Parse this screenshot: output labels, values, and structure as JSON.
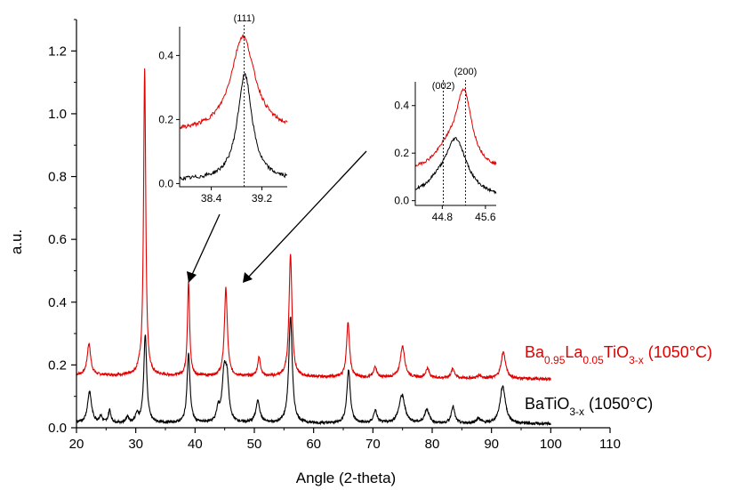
{
  "colors": {
    "red": "#e00000",
    "black": "#000000"
  },
  "chart_data": {
    "type": "line",
    "xlabel": "Angle (2-theta)",
    "ylabel": "a.u.",
    "xlim": [
      20,
      110
    ],
    "ylim": [
      0,
      1.3
    ],
    "x_ticks": [
      "20",
      "30",
      "40",
      "50",
      "60",
      "70",
      "80",
      "90",
      "100",
      "110"
    ],
    "y_ticks": [
      "0.0",
      "0.2",
      "0.4",
      "0.6",
      "0.8",
      "1.0",
      "1.2"
    ],
    "x_range": [
      20,
      100
    ],
    "series": [
      {
        "name_parts": [
          "Ba",
          "0.95",
          "La",
          "0.05",
          "TiO",
          "3-x",
          " (1050°C)"
        ],
        "color": "#e00000",
        "baseline": 0.168,
        "baseline_end": 0.155,
        "peaks": [
          {
            "x": 22.1,
            "h": 0.1,
            "w": 0.35
          },
          {
            "x": 30.5,
            "h": 0.015,
            "w": 0.3
          },
          {
            "x": 31.5,
            "h": 0.98,
            "w": 0.22
          },
          {
            "x": 38.9,
            "h": 0.3,
            "w": 0.22
          },
          {
            "x": 45.2,
            "h": 0.28,
            "w": 0.3
          },
          {
            "x": 50.8,
            "h": 0.06,
            "w": 0.3
          },
          {
            "x": 56.1,
            "h": 0.39,
            "w": 0.3
          },
          {
            "x": 65.8,
            "h": 0.175,
            "w": 0.3
          },
          {
            "x": 70.4,
            "h": 0.035,
            "w": 0.3
          },
          {
            "x": 75.0,
            "h": 0.1,
            "w": 0.45
          },
          {
            "x": 79.2,
            "h": 0.03,
            "w": 0.35
          },
          {
            "x": 83.5,
            "h": 0.03,
            "w": 0.35
          },
          {
            "x": 88.0,
            "h": 0.01,
            "w": 0.4
          },
          {
            "x": 92.0,
            "h": 0.085,
            "w": 0.45
          }
        ]
      },
      {
        "name_parts": [
          "BaTiO",
          "3-x",
          " (1050°C)"
        ],
        "color": "#000000",
        "baseline": 0.015,
        "baseline_end": 0.012,
        "peaks": [
          {
            "x": 22.2,
            "h": 0.1,
            "w": 0.4
          },
          {
            "x": 24.1,
            "h": 0.02,
            "w": 0.3
          },
          {
            "x": 25.6,
            "h": 0.04,
            "w": 0.25
          },
          {
            "x": 28.6,
            "h": 0.02,
            "w": 0.25
          },
          {
            "x": 30.2,
            "h": 0.025,
            "w": 0.3
          },
          {
            "x": 31.6,
            "h": 0.28,
            "w": 0.3
          },
          {
            "x": 38.9,
            "h": 0.22,
            "w": 0.3
          },
          {
            "x": 43.9,
            "h": 0.04,
            "w": 0.3
          },
          {
            "x": 44.9,
            "h": 0.15,
            "w": 0.4
          },
          {
            "x": 45.4,
            "h": 0.12,
            "w": 0.35
          },
          {
            "x": 50.6,
            "h": 0.07,
            "w": 0.4
          },
          {
            "x": 56.1,
            "h": 0.34,
            "w": 0.35
          },
          {
            "x": 65.9,
            "h": 0.17,
            "w": 0.35
          },
          {
            "x": 70.4,
            "h": 0.04,
            "w": 0.35
          },
          {
            "x": 74.9,
            "h": 0.09,
            "w": 0.6
          },
          {
            "x": 79.1,
            "h": 0.045,
            "w": 0.45
          },
          {
            "x": 83.5,
            "h": 0.055,
            "w": 0.35
          },
          {
            "x": 87.8,
            "h": 0.015,
            "w": 0.5
          },
          {
            "x": 91.9,
            "h": 0.12,
            "w": 0.55
          }
        ]
      }
    ],
    "insets": [
      {
        "name": "inset-111",
        "xlim": [
          37.9,
          39.6
        ],
        "ylim": [
          -0.01,
          0.49
        ],
        "x_ticks": [
          "38.4",
          "39.2"
        ],
        "y_ticks": [
          "0.0",
          "0.2",
          "0.4"
        ],
        "markers": [
          {
            "x": 38.92,
            "label": "(111)"
          }
        ],
        "series": [
          {
            "color": "#e00000",
            "base": 0.16,
            "peaks": [
              {
                "x": 38.9,
                "h": 0.3,
                "w": 0.23
              }
            ]
          },
          {
            "color": "#000000",
            "base": 0.01,
            "peaks": [
              {
                "x": 38.93,
                "h": 0.33,
                "w": 0.14
              }
            ]
          }
        ]
      },
      {
        "name": "inset-200",
        "xlim": [
          44.3,
          45.8
        ],
        "ylim": [
          -0.02,
          0.5
        ],
        "x_ticks": [
          "44.8",
          "45.6"
        ],
        "y_ticks": [
          "0.0",
          "0.2",
          "0.4"
        ],
        "markers": [
          {
            "x": 44.82,
            "label": "(002)"
          },
          {
            "x": 45.23,
            "label": "(200)"
          }
        ],
        "series": [
          {
            "color": "#e00000",
            "base": 0.12,
            "base_end": 0.12,
            "peaks": [
              {
                "x": 45.2,
                "h": 0.31,
                "w": 0.18
              },
              {
                "x": 44.9,
                "h": 0.08,
                "w": 0.3
              }
            ]
          },
          {
            "color": "#000000",
            "base": 0.02,
            "base_end": 0.01,
            "peaks": [
              {
                "x": 45.05,
                "h": 0.24,
                "w": 0.25
              },
              {
                "x": 44.7,
                "h": 0.03,
                "w": 0.2
              }
            ]
          }
        ]
      }
    ]
  }
}
